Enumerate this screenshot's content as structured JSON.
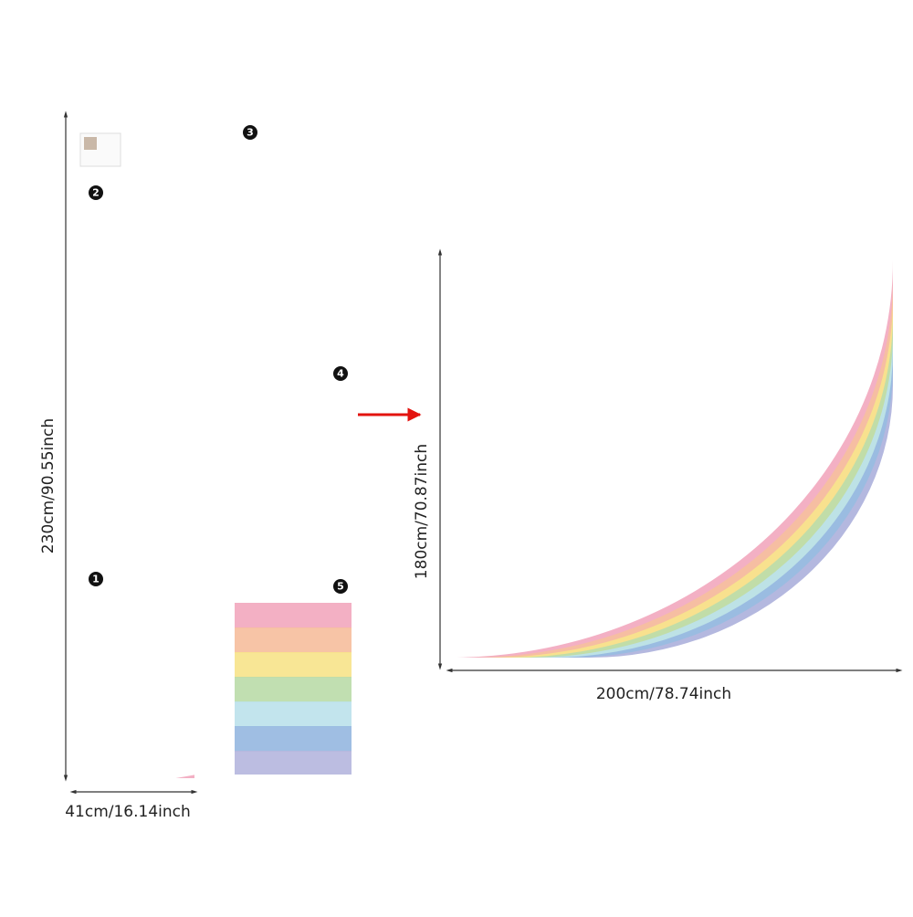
{
  "dimensions": {
    "sheet_height": "230cm/90.55inch",
    "sheet_width": "41cm/16.14inch",
    "rainbow_height": "180cm/70.87inch",
    "rainbow_width": "200cm/78.74inch"
  },
  "pieces": [
    "1",
    "2",
    "3",
    "4",
    "5"
  ]
}
